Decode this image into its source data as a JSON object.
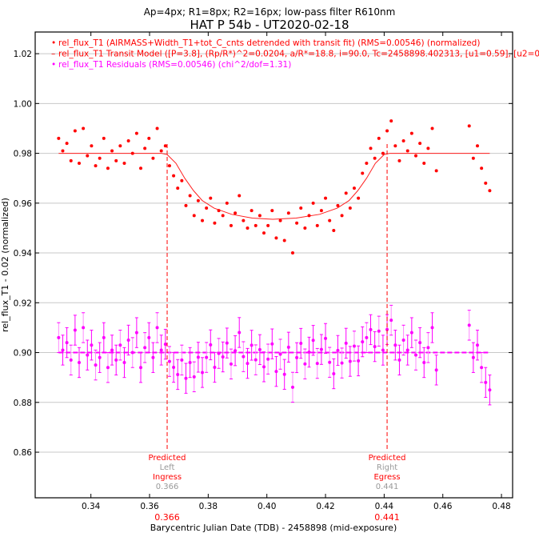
{
  "chart_data": {
    "type": "scatter",
    "subtitle": "Ap=4px; R1=8px; R2=16px; low-pass filter R610nm",
    "title": "HAT P 54b - UT2020-02-18",
    "xlabel": "Barycentric Julian Date (TDB) - 2458898 (mid-exposure)",
    "ylabel": "rel_flux_T1 - 0.02 (normalized)",
    "xlim": [
      0.321,
      0.4838
    ],
    "ylim": [
      0.8417,
      1.0287
    ],
    "xticks": [
      "0.34",
      "0.36",
      "0.38",
      "0.40",
      "0.42",
      "0.44",
      "0.46",
      "0.48"
    ],
    "yticks": [
      "0.86",
      "0.88",
      "0.90",
      "0.92",
      "0.94",
      "0.96",
      "0.98",
      "1.00",
      "1.02"
    ],
    "grid": "horizontal",
    "legend_placement": "top-left",
    "legend": [
      {
        "marker": "•",
        "label": "rel_flux_T1 (AIRMASS+Width_T1+tot_C_cnts detrended with transit fit) (RMS=0.00546) (normalized)",
        "color": "#ff0000"
      },
      {
        "marker": "–",
        "label": "rel_flux_T1 Transit Model ([P=3.8], (Rp/R*)^2=0.0204, a/R*=18.8, i=90.0, Tc=2458898.402313, [u1=0.59], [u2=0.",
        "color": "#ff0000"
      },
      {
        "marker": "•",
        "label": "rel_flux_T1 Residuals (RMS=0.00546) (chi^2/dof=1.31)",
        "color": "#ff00ff"
      }
    ],
    "series": [
      {
        "name": "rel_flux_T1",
        "color": "#ff0000",
        "x": [
          0.329,
          0.3304,
          0.3318,
          0.3332,
          0.3346,
          0.336,
          0.3374,
          0.3388,
          0.3402,
          0.3416,
          0.343,
          0.3444,
          0.3458,
          0.3472,
          0.3486,
          0.35,
          0.3514,
          0.3528,
          0.3542,
          0.3556,
          0.357,
          0.3584,
          0.3598,
          0.3612,
          0.3626,
          0.364,
          0.3654,
          0.3668,
          0.3682,
          0.3696,
          0.371,
          0.3724,
          0.3738,
          0.3752,
          0.3766,
          0.378,
          0.3794,
          0.3808,
          0.3822,
          0.3836,
          0.385,
          0.3864,
          0.3878,
          0.3892,
          0.3906,
          0.392,
          0.3934,
          0.3948,
          0.3962,
          0.3976,
          0.399,
          0.4004,
          0.4018,
          0.4032,
          0.4046,
          0.406,
          0.4074,
          0.4088,
          0.4102,
          0.4116,
          0.413,
          0.4144,
          0.4158,
          0.4172,
          0.4186,
          0.42,
          0.4214,
          0.4228,
          0.4242,
          0.4256,
          0.427,
          0.4284,
          0.4298,
          0.4312,
          0.4326,
          0.434,
          0.4354,
          0.4368,
          0.4382,
          0.4396,
          0.441,
          0.4424,
          0.4438,
          0.4452,
          0.4466,
          0.448,
          0.4494,
          0.4508,
          0.4522,
          0.4536,
          0.455,
          0.4564,
          0.4578,
          0.469,
          0.4704,
          0.4718,
          0.4732,
          0.4746,
          0.476
        ],
        "y": [
          0.986,
          0.981,
          0.984,
          0.977,
          0.989,
          0.976,
          0.99,
          0.979,
          0.983,
          0.975,
          0.978,
          0.986,
          0.974,
          0.981,
          0.977,
          0.983,
          0.976,
          0.985,
          0.98,
          0.988,
          0.974,
          0.982,
          0.986,
          0.978,
          0.99,
          0.981,
          0.983,
          0.975,
          0.971,
          0.966,
          0.969,
          0.959,
          0.963,
          0.955,
          0.961,
          0.953,
          0.958,
          0.962,
          0.952,
          0.957,
          0.955,
          0.96,
          0.951,
          0.956,
          0.963,
          0.953,
          0.95,
          0.957,
          0.951,
          0.955,
          0.948,
          0.951,
          0.957,
          0.946,
          0.953,
          0.945,
          0.956,
          0.94,
          0.952,
          0.958,
          0.95,
          0.955,
          0.96,
          0.951,
          0.957,
          0.962,
          0.953,
          0.949,
          0.959,
          0.955,
          0.964,
          0.958,
          0.966,
          0.962,
          0.972,
          0.976,
          0.982,
          0.978,
          0.986,
          0.98,
          0.989,
          0.993,
          0.983,
          0.977,
          0.985,
          0.981,
          0.988,
          0.979,
          0.984,
          0.976,
          0.982,
          0.99,
          0.973,
          0.991,
          0.978,
          0.983,
          0.974,
          0.968,
          0.965
        ]
      },
      {
        "name": "Transit Model",
        "color": "#ff0000",
        "x": [
          0.329,
          0.364,
          0.366,
          0.369,
          0.372,
          0.375,
          0.378,
          0.382,
          0.388,
          0.395,
          0.402,
          0.41,
          0.418,
          0.424,
          0.428,
          0.431,
          0.434,
          0.437,
          0.44,
          0.442,
          0.446,
          0.476
        ],
        "y": [
          0.98,
          0.98,
          0.9795,
          0.976,
          0.97,
          0.965,
          0.961,
          0.958,
          0.9555,
          0.954,
          0.9535,
          0.954,
          0.9555,
          0.958,
          0.961,
          0.965,
          0.97,
          0.976,
          0.9795,
          0.98,
          0.98,
          0.98
        ]
      },
      {
        "name": "Residuals",
        "color": "#ff00ff",
        "offset": 0.9,
        "error": 0.006
      }
    ],
    "annotations": [
      {
        "label": "Predicted",
        "sub": "Left",
        "kind": "Ingress",
        "value": "0.366",
        "x": 0.366
      },
      {
        "label": "Predicted",
        "sub": "Right",
        "kind": "Egress",
        "value": "0.441",
        "x": 0.441
      }
    ]
  }
}
